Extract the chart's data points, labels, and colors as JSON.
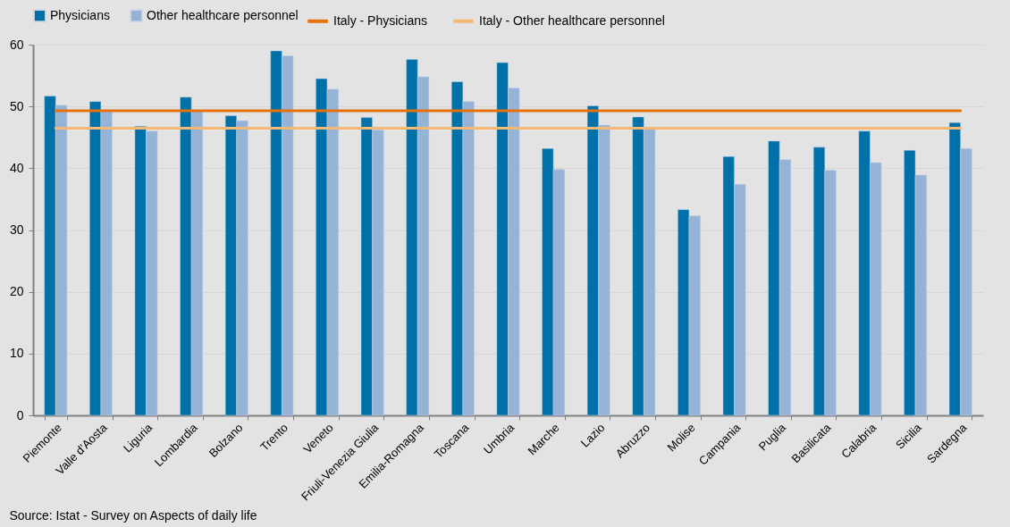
{
  "chart_data": {
    "type": "bar",
    "categories": [
      "Piemonte",
      "Valle d'Aosta",
      "Liguria",
      "Lombardia",
      "Bolzano",
      "Trento",
      "Veneto",
      "Friuli-Venezia Giulia",
      "Emilia-Romagna",
      "Toscana",
      "Umbria",
      "Marche",
      "Lazio",
      "Abruzzo",
      "Molise",
      "Campania",
      "Puglia",
      "Basilicata",
      "Calabria",
      "Sicilia",
      "Sardegna"
    ],
    "series": [
      {
        "name": "Physicians",
        "color": "#0070a8",
        "values": [
          51.7,
          50.8,
          46.8,
          51.5,
          48.5,
          59.0,
          54.5,
          48.2,
          57.6,
          54.0,
          57.1,
          43.2,
          50.1,
          48.3,
          33.3,
          41.9,
          44.4,
          43.4,
          46.0,
          42.9,
          47.4
        ]
      },
      {
        "name": "Other healthcare personnel",
        "color": "#95b3d7",
        "values": [
          50.2,
          49.2,
          46.0,
          49.3,
          47.7,
          58.2,
          52.8,
          46.2,
          54.8,
          50.8,
          53.0,
          39.8,
          47.0,
          46.3,
          32.3,
          37.4,
          41.4,
          39.7,
          40.9,
          38.9,
          43.2
        ]
      },
      {
        "name": "Italy - Physicians",
        "type": "line",
        "color": "#e8700a",
        "values": [
          49.3,
          49.3,
          49.3,
          49.3,
          49.3,
          49.3,
          49.3,
          49.3,
          49.3,
          49.3,
          49.3,
          49.3,
          49.3,
          49.3,
          49.3,
          49.3,
          49.3,
          49.3,
          49.3,
          49.3,
          49.3
        ]
      },
      {
        "name": "Italy - Other healthcare personnel",
        "type": "line",
        "color": "#f6b873",
        "values": [
          46.5,
          46.5,
          46.5,
          46.5,
          46.5,
          46.5,
          46.5,
          46.5,
          46.5,
          46.5,
          46.5,
          46.5,
          46.5,
          46.5,
          46.5,
          46.5,
          46.5,
          46.5,
          46.5,
          46.5,
          46.5
        ]
      }
    ],
    "ylim": [
      0,
      60
    ],
    "yticks": [
      0,
      10,
      20,
      30,
      40,
      50,
      60
    ],
    "grid": "y",
    "legend": "top",
    "marker": "none",
    "line_style": "solid",
    "annotations": [
      "Source: Istat - Survey on Aspects of daily life"
    ]
  }
}
